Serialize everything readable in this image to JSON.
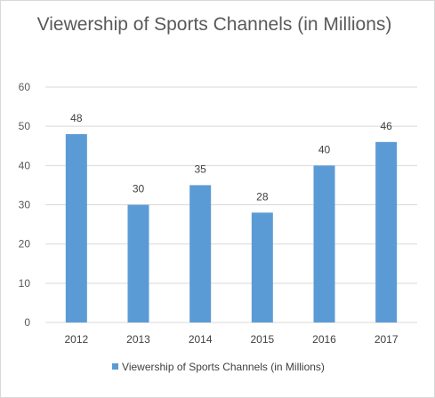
{
  "chart_data": {
    "type": "bar",
    "title": "Viewership of Sports Channels (in Millions)",
    "categories": [
      "2012",
      "2013",
      "2014",
      "2015",
      "2016",
      "2017"
    ],
    "series": [
      {
        "name": "Viewership of Sports Channels (in Millions)",
        "values": [
          48,
          30,
          35,
          28,
          40,
          46
        ],
        "color": "#5b9bd5"
      }
    ],
    "ylim": [
      0,
      60
    ],
    "yticks": [
      0,
      10,
      20,
      30,
      40,
      50,
      60
    ],
    "data_labels": true,
    "grid": true,
    "legend_position": "bottom"
  },
  "colors": {
    "bar": "#5b9bd5",
    "grid": "#d9d9d9",
    "axis_text": "#595959",
    "label_text": "#404040"
  }
}
